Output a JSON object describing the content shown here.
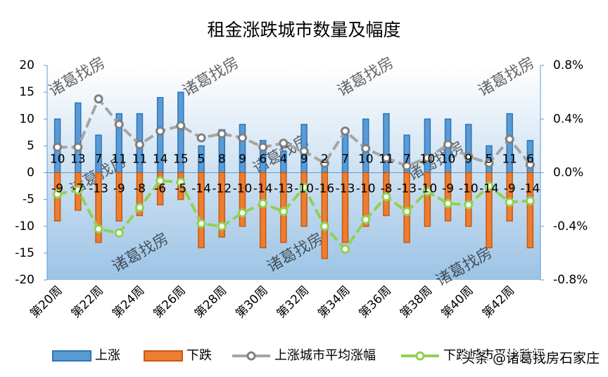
{
  "chart_data": {
    "type": "bar-line",
    "title": "租金涨跌城市数量及幅度",
    "categories": [
      "第20周",
      null,
      "第22周",
      null,
      "第24周",
      null,
      "第26周",
      null,
      "第28周",
      null,
      "第30周",
      null,
      "第32周",
      null,
      "第34周",
      null,
      "第36周",
      null,
      "第38周",
      null,
      "第40周",
      null,
      "第42周",
      null
    ],
    "series": [
      {
        "name": "上涨",
        "color": "#5b9bd5",
        "values": [
          10,
          13,
          7,
          11,
          11,
          14,
          15,
          5,
          8,
          9,
          6,
          4,
          9,
          2,
          7,
          10,
          11,
          7,
          10,
          10,
          9,
          5,
          11,
          6
        ]
      },
      {
        "name": "下跌",
        "color": "#ed7d31",
        "values": [
          -9,
          -7,
          -13,
          -9,
          -8,
          -6,
          -5,
          -14,
          -12,
          -10,
          -14,
          -13,
          -10,
          -16,
          -13,
          -10,
          -8,
          -13,
          -10,
          -9,
          -10,
          -14,
          -9,
          -14
        ]
      },
      {
        "name": "上涨城市平均涨幅",
        "color": "#a5a5a5",
        "axis": "y2",
        "values": [
          0.19,
          0.19,
          0.55,
          0.36,
          0.21,
          0.31,
          0.35,
          0.26,
          0.29,
          0.26,
          0.19,
          0.22,
          0.16,
          0.07,
          0.31,
          0.18,
          0.11,
          0.05,
          0.11,
          0.21,
          0.12,
          0.07,
          0.25,
          0.06
        ]
      },
      {
        "name": "下跌城市平均跌幅",
        "color": "#92d050",
        "axis": "y2",
        "values": [
          -0.16,
          -0.13,
          -0.42,
          -0.45,
          -0.26,
          -0.06,
          -0.07,
          -0.38,
          -0.4,
          -0.3,
          -0.23,
          -0.29,
          -0.11,
          -0.4,
          -0.57,
          -0.35,
          -0.18,
          -0.29,
          -0.14,
          -0.23,
          -0.24,
          -0.1,
          -0.22,
          -0.21
        ]
      }
    ],
    "ylim": [
      -20,
      20
    ],
    "yticks": [
      -20,
      -15,
      -10,
      -5,
      0,
      5,
      10,
      15,
      20
    ],
    "y2lim": [
      -0.8,
      0.8
    ],
    "y2ticks": [
      {
        "value": -0.8,
        "label": "-0.8%"
      },
      {
        "value": -0.4,
        "label": "-0.4%"
      },
      {
        "value": 0,
        "label": "0.0%"
      },
      {
        "value": 0.4,
        "label": "0.4%"
      },
      {
        "value": 0.8,
        "label": "0.8%"
      }
    ],
    "watermark": "诸葛找房",
    "credit": "头条 @诸葛找房石家庄"
  }
}
